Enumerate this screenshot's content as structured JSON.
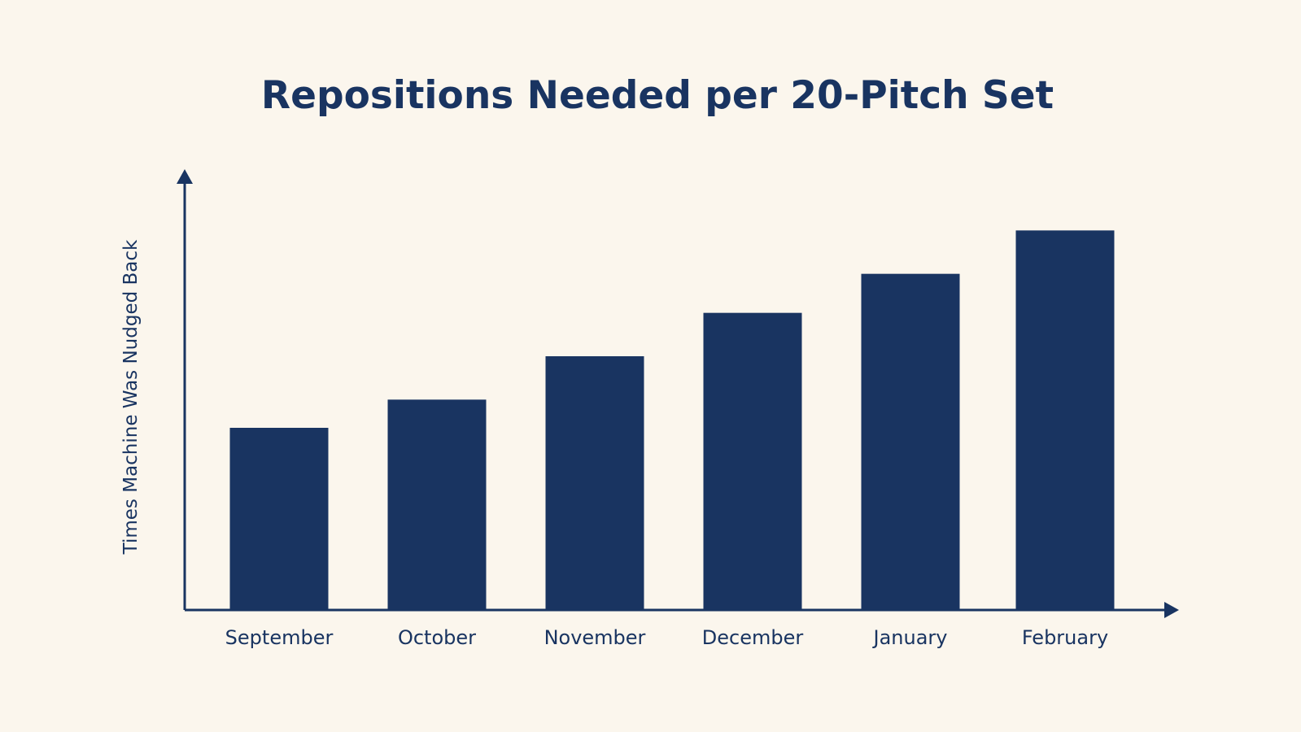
{
  "colors": {
    "background": "#fbf6ed",
    "bar": "#193461",
    "axis": "#193461",
    "text": "#193461"
  },
  "chart_data": {
    "type": "bar",
    "title": "Repositions Needed per 20-Pitch Set",
    "xlabel": "",
    "ylabel": "Times Machine Was Nudged Back",
    "categories": [
      "September",
      "October",
      "November",
      "December",
      "January",
      "February"
    ],
    "values": [
      4.2,
      4.85,
      5.85,
      6.85,
      7.75,
      8.75
    ],
    "ylim": [
      0,
      10.5
    ],
    "grid": false,
    "y_ticks_shown": false,
    "legend": "none"
  }
}
